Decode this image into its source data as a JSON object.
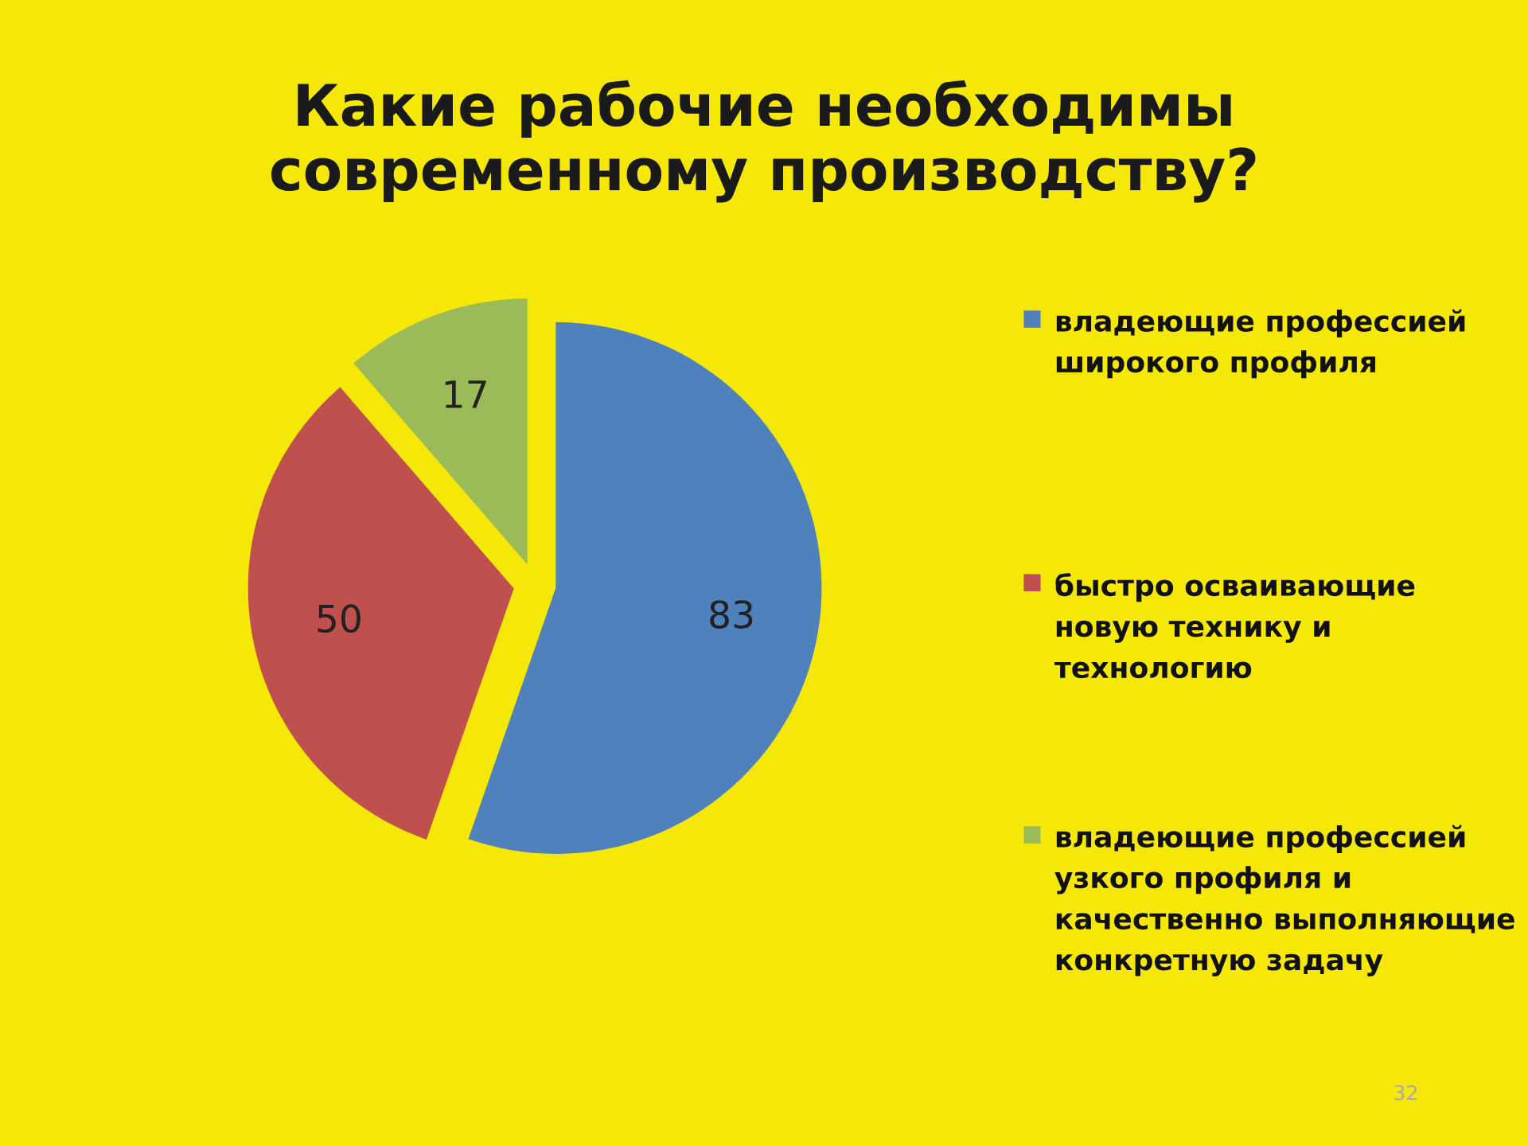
{
  "chart_data": {
    "type": "pie",
    "title": "Какие рабочие необходимы\nсовременному производству?",
    "categories": [
      "владеющие профессией широкого профиля",
      "быстро осваивающие новую технику и технологию",
      "владеющие профессией узкого профиля и качественно выполняющие конкретную задачу"
    ],
    "values": [
      83,
      50,
      17
    ],
    "colors": [
      "#4f81bd",
      "#c0504d",
      "#9bbb59"
    ],
    "data_labels": true,
    "legend": "right",
    "annotations": [
      "32"
    ]
  }
}
